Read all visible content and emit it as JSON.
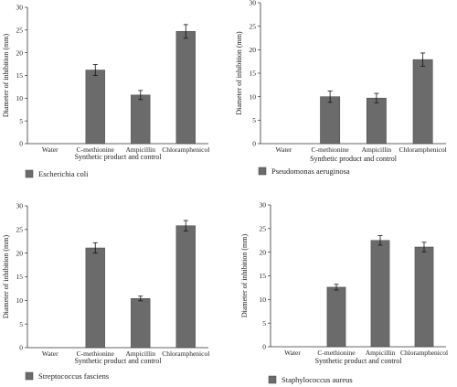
{
  "chart_data": [
    {
      "type": "bar",
      "categories": [
        "Water",
        "C-methionine",
        "Ampicillin",
        "Chloramphenicol"
      ],
      "values": [
        0,
        16.2,
        10.7,
        24.7
      ],
      "errors": [
        0,
        1.2,
        1.0,
        1.5
      ],
      "xlabel": "Synthetic product and control",
      "ylabel": "Diameter of inhibition (mm)",
      "ylim": [
        0,
        30
      ],
      "yticks": [
        0,
        5,
        10,
        15,
        20,
        25,
        30
      ],
      "legend": "Escherichia coli",
      "bar_color": "#6b6b6b",
      "grid": false
    },
    {
      "type": "bar",
      "categories": [
        "Water",
        "C-methionine",
        "Ampicillin",
        "Chloramphenicol"
      ],
      "values": [
        0,
        10.0,
        9.7,
        17.9
      ],
      "errors": [
        0,
        1.2,
        1.0,
        1.4
      ],
      "xlabel": "Synthetic product and control",
      "ylabel": "Diameter of inhibition (mm)",
      "ylim": [
        0,
        30
      ],
      "yticks": [
        0,
        5,
        10,
        15,
        20,
        25,
        30
      ],
      "legend": "Pseudomonas aeruginosa",
      "bar_color": "#6b6b6b",
      "grid": false
    },
    {
      "type": "bar",
      "categories": [
        "Water",
        "C-methionine",
        "Ampicillin",
        "Chloramphenicol"
      ],
      "values": [
        0,
        21.1,
        10.4,
        25.8
      ],
      "errors": [
        0,
        1.1,
        0.5,
        1.1
      ],
      "xlabel": "Synthetic product and control",
      "ylabel": "Diameter of inhibition (mm)",
      "ylim": [
        0,
        30
      ],
      "yticks": [
        0,
        5,
        10,
        15,
        20,
        25,
        30
      ],
      "legend": "Streptococcus fasciens",
      "bar_color": "#6b6b6b",
      "grid": false
    },
    {
      "type": "bar",
      "categories": [
        "Water",
        "C-methionine",
        "Ampicillin",
        "Chloramphenicol"
      ],
      "values": [
        0,
        12.6,
        22.5,
        21.1
      ],
      "errors": [
        0,
        0.6,
        1.0,
        1.0
      ],
      "xlabel": "Synthetic product and control",
      "ylabel": "Diameter of inhibition (mm)",
      "ylim": [
        0,
        30
      ],
      "yticks": [
        0,
        5,
        10,
        15,
        20,
        25,
        30
      ],
      "legend": "Staphylococcus aureus",
      "bar_color": "#6b6b6b",
      "grid": false
    }
  ]
}
